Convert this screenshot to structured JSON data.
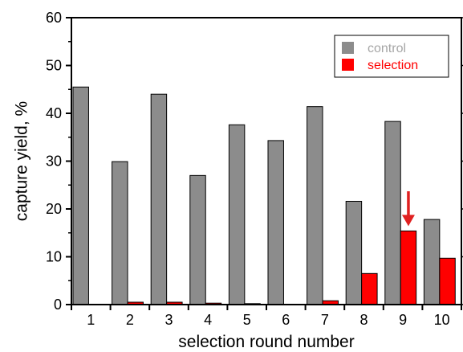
{
  "chart_data": {
    "type": "bar",
    "xlabel": "selection round number",
    "ylabel": "capture yield, %",
    "ylim": [
      0,
      60
    ],
    "y_ticks": [
      0,
      10,
      20,
      30,
      40,
      50,
      60
    ],
    "categories": [
      "1",
      "2",
      "3",
      "4",
      "5",
      "6",
      "7",
      "8",
      "9",
      "10"
    ],
    "series": [
      {
        "name": "control",
        "color": "#8c8c8c",
        "legend_text_color": "#a6a6a6",
        "values": [
          45.5,
          29.9,
          44.0,
          27.0,
          37.6,
          34.3,
          41.4,
          21.6,
          38.3,
          17.8
        ]
      },
      {
        "name": "selection",
        "color": "#ff0000",
        "legend_text_color": "#ff0000",
        "values": [
          0,
          0.5,
          0.5,
          0.3,
          0.2,
          0,
          0.8,
          6.5,
          15.4,
          9.7
        ]
      }
    ],
    "legend_position": "top-right",
    "grid": false,
    "annotation": {
      "type": "arrow",
      "category": "9",
      "series": "selection",
      "color": "#e02020"
    }
  }
}
